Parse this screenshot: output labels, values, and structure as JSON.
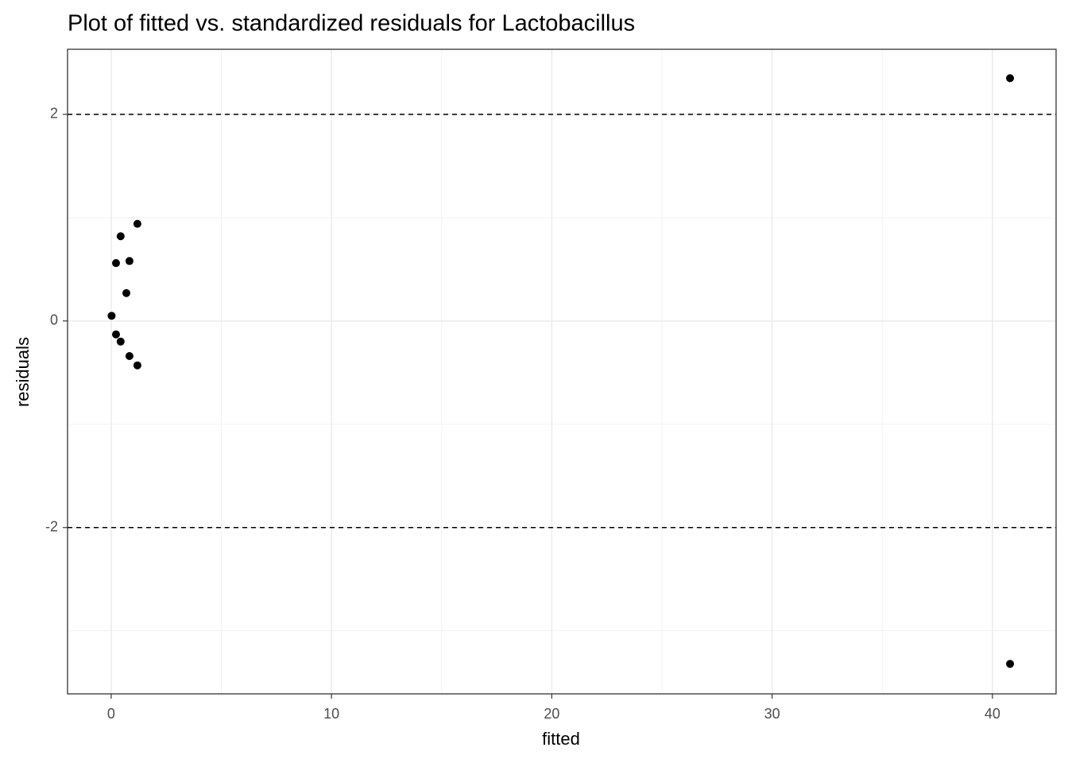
{
  "chart_data": {
    "type": "scatter",
    "title": "Plot of fitted vs. standardized residuals for Lactobacillus",
    "x_label": "fitted",
    "y_label": "residuals",
    "x": [
      0.02,
      0.22,
      0.22,
      0.43,
      0.43,
      0.69,
      0.83,
      0.83,
      1.19,
      1.19,
      40.8,
      40.8
    ],
    "values": [
      0.05,
      0.56,
      -0.13,
      0.82,
      -0.2,
      0.27,
      0.58,
      -0.34,
      0.94,
      -0.43,
      2.35,
      -3.32
    ],
    "color": "#000000",
    "xlim": [
      -1.98,
      42.89
    ],
    "ylim": [
      -3.61,
      2.63
    ],
    "xticks": [
      0,
      10,
      20,
      30,
      40
    ],
    "yticks": [
      -2,
      0,
      2
    ],
    "hlines": [
      2,
      -2
    ],
    "grid": true
  }
}
